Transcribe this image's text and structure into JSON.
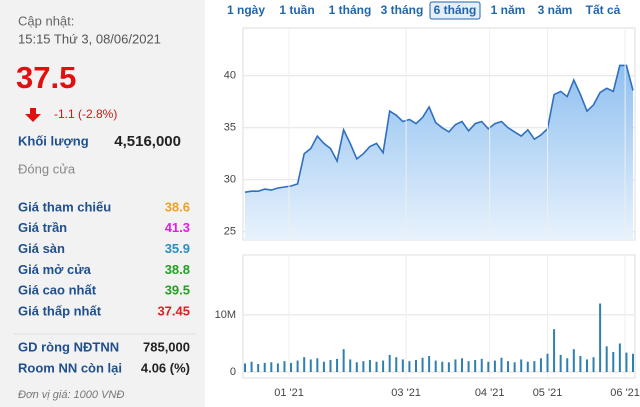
{
  "panel": {
    "update_label": "Cập nhật:",
    "update_time": "15:15 Thứ 3, 08/06/2021",
    "price": "37.5",
    "change": "-1.1 (-2.8%)",
    "volume_label": "Khối lượng",
    "volume_value": "4,516,000",
    "status": "Đóng cửa",
    "rows": [
      {
        "label": "Giá tham chiếu",
        "value": "38.6",
        "color": "#f0a020"
      },
      {
        "label": "Giá trần",
        "value": "41.3",
        "color": "#e020e0"
      },
      {
        "label": "Giá sàn",
        "value": "35.9",
        "color": "#2a8fc0"
      },
      {
        "label": "Giá mở cửa",
        "value": "38.8",
        "color": "#22a022"
      },
      {
        "label": "Giá cao nhất",
        "value": "39.5",
        "color": "#22a022"
      },
      {
        "label": "Giá thấp nhất",
        "value": "37.45",
        "color": "#e02020"
      }
    ],
    "foreign": [
      {
        "label": "GD ròng NĐTNN",
        "value": "785,000"
      },
      {
        "label": "Room NN còn lại",
        "value": "4.06 (%)"
      }
    ],
    "unit_note": "Đơn vị giá: 1000 VNĐ"
  },
  "range_buttons": {
    "items": [
      "1 ngày",
      "1 tuần",
      "1 tháng",
      "3 tháng",
      "6 tháng",
      "1 năm",
      "3 năm",
      "Tất cả"
    ],
    "selected": 4
  },
  "chart_data": [
    {
      "type": "area",
      "grid": true,
      "color": "#2f6fc0",
      "x": [
        0,
        1,
        2,
        3,
        4,
        5,
        6,
        7,
        8,
        9,
        10,
        11,
        12,
        13,
        14,
        15,
        16,
        17,
        18,
        19,
        20,
        21,
        22,
        23,
        24,
        25,
        26,
        27,
        28,
        29,
        30,
        31,
        32,
        33,
        34,
        35,
        36,
        37,
        38,
        39,
        40,
        41,
        42,
        43,
        44,
        45,
        46,
        47,
        48,
        49,
        50,
        51,
        52,
        53,
        54,
        55,
        56,
        57,
        58,
        59
      ],
      "series": [
        {
          "values": [
            28.8,
            28.9,
            28.9,
            29.1,
            29.0,
            29.2,
            29.3,
            29.4,
            29.6,
            32.5,
            33.0,
            34.2,
            33.5,
            33.0,
            31.8,
            34.8,
            33.5,
            32.0,
            32.5,
            33.2,
            33.5,
            32.6,
            36.6,
            36.2,
            35.6,
            35.8,
            35.4,
            36.0,
            37.0,
            35.5,
            35.0,
            34.6,
            35.3,
            35.6,
            34.7,
            35.4,
            35.6,
            34.9,
            35.4,
            35.6,
            35.0,
            34.6,
            34.2,
            34.8,
            33.9,
            34.3,
            34.9,
            38.2,
            38.5,
            38.0,
            39.6,
            38.2,
            36.6,
            37.2,
            38.4,
            38.8,
            38.5,
            41.0,
            41.0,
            38.6
          ]
        }
      ],
      "xlim": [
        0,
        59
      ],
      "ylim": [
        24.2,
        44.6
      ],
      "yticks": [
        25,
        30,
        35,
        40
      ]
    },
    {
      "type": "bar",
      "grid": true,
      "color": "#2f7fb0",
      "x": [
        0,
        1,
        2,
        3,
        4,
        5,
        6,
        7,
        8,
        9,
        10,
        11,
        12,
        13,
        14,
        15,
        16,
        17,
        18,
        19,
        20,
        21,
        22,
        23,
        24,
        25,
        26,
        27,
        28,
        29,
        30,
        31,
        32,
        33,
        34,
        35,
        36,
        37,
        38,
        39,
        40,
        41,
        42,
        43,
        44,
        45,
        46,
        47,
        48,
        49,
        50,
        51,
        52,
        53,
        54,
        55,
        56,
        57,
        58,
        59
      ],
      "series": [
        {
          "values": [
            1500000,
            1800000,
            1400000,
            1600000,
            1700000,
            1500000,
            1900000,
            1600000,
            2000000,
            2600000,
            2200000,
            2400000,
            1800000,
            2100000,
            2300000,
            4000000,
            2200000,
            1700000,
            1900000,
            2100000,
            1800000,
            2000000,
            3000000,
            2600000,
            2200000,
            1900000,
            2100000,
            2500000,
            2800000,
            2000000,
            1800000,
            1700000,
            2200000,
            2400000,
            1900000,
            2100000,
            2300000,
            1800000,
            2000000,
            2500000,
            1900000,
            1700000,
            2200000,
            1800000,
            1900000,
            2400000,
            3200000,
            7500000,
            3000000,
            2400000,
            4000000,
            2800000,
            2200000,
            2600000,
            12000000,
            4500000,
            3500000,
            5000000,
            3400000,
            3200000
          ]
        }
      ],
      "xlim": [
        0,
        59
      ],
      "ylim": [
        0,
        20500000
      ],
      "yticks": [
        0,
        {
          "value": 10000000,
          "label": "10M"
        }
      ],
      "xticks": [
        {
          "value": 6.7,
          "label": "01 '21"
        },
        {
          "value": 24.5,
          "label": "03 '21"
        },
        {
          "value": 37.2,
          "label": "04 '21"
        },
        {
          "value": 46,
          "label": "05 '21"
        },
        {
          "value": 57.8,
          "label": "06 '21"
        }
      ]
    }
  ]
}
